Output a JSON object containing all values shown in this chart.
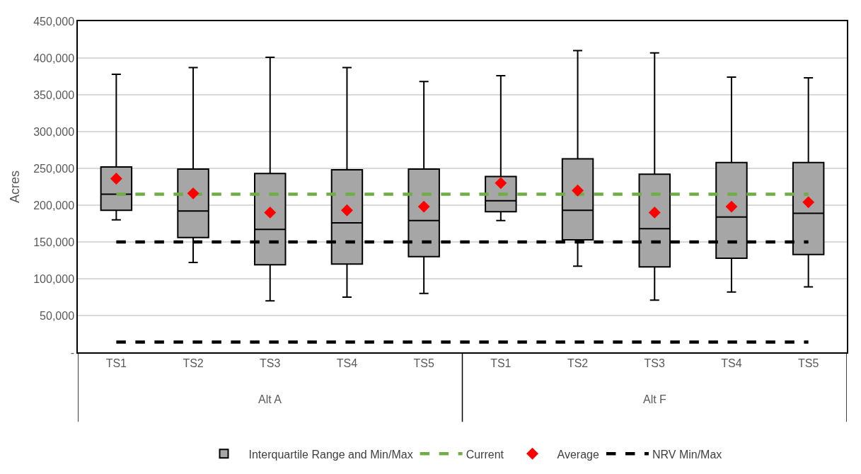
{
  "chart_data": {
    "type": "box",
    "ylabel": "Acres",
    "categories": [
      "TS1",
      "TS2",
      "TS3",
      "TS4",
      "TS5",
      "TS1",
      "TS2",
      "TS3",
      "TS4",
      "TS5"
    ],
    "annotations": [
      "Alt A",
      "Alt F"
    ],
    "ylim": [
      0,
      450000
    ],
    "yticks": [
      {
        "value": 0,
        "label": "-"
      },
      {
        "value": 50000,
        "label": "50,000"
      },
      {
        "value": 100000,
        "label": "100,000"
      },
      {
        "value": 150000,
        "label": "150,000"
      },
      {
        "value": 200000,
        "label": "200,000"
      },
      {
        "value": 250000,
        "label": "250,000"
      },
      {
        "value": 300000,
        "label": "300,000"
      },
      {
        "value": 350000,
        "label": "350,000"
      },
      {
        "value": 400000,
        "label": "400,000"
      },
      {
        "value": 450000,
        "label": "450,000"
      }
    ],
    "grid": "y",
    "legend": "bottom",
    "series": [
      {
        "name": "Interquartile Range and Min/Max",
        "color": "#a6a6a6",
        "boxes": [
          {
            "low": 180000,
            "q1": 193000,
            "median": 215000,
            "q3": 252000,
            "high": 378000
          },
          {
            "low": 122000,
            "q1": 156000,
            "median": 192000,
            "q3": 249000,
            "high": 387000
          },
          {
            "low": 70000,
            "q1": 119000,
            "median": 167000,
            "q3": 243000,
            "high": 401000
          },
          {
            "low": 75000,
            "q1": 120000,
            "median": 176000,
            "q3": 248000,
            "high": 387000
          },
          {
            "low": 80000,
            "q1": 130000,
            "median": 179000,
            "q3": 249000,
            "high": 368000
          },
          {
            "low": 179000,
            "q1": 191000,
            "median": 206000,
            "q3": 239000,
            "high": 376000
          },
          {
            "low": 117000,
            "q1": 153000,
            "median": 193000,
            "q3": 263000,
            "high": 410000
          },
          {
            "low": 71000,
            "q1": 116000,
            "median": 168000,
            "q3": 242000,
            "high": 407000
          },
          {
            "low": 82000,
            "q1": 128000,
            "median": 184000,
            "q3": 258000,
            "high": 374000
          },
          {
            "low": 89000,
            "q1": 133000,
            "median": 189000,
            "q3": 258000,
            "high": 373000
          }
        ]
      },
      {
        "name": "Current",
        "type": "line",
        "color": "#70ad47",
        "line_style": "dashed",
        "marker": "none",
        "values": [
          215000,
          215000,
          215000,
          215000,
          215000,
          215000,
          215000,
          215000,
          215000,
          215000
        ]
      },
      {
        "name": "Average",
        "type": "scatter",
        "color": "#ff0000",
        "marker": "diamond",
        "values": [
          236000,
          216000,
          190000,
          193000,
          198000,
          230000,
          220000,
          190000,
          198000,
          204000
        ]
      },
      {
        "name": "NRV Min/Max",
        "type": "line",
        "color": "#000000",
        "line_style": "dashed",
        "marker": "none",
        "values": [
          150000,
          150000,
          150000,
          150000,
          150000,
          150000,
          150000,
          150000,
          150000,
          150000
        ]
      },
      {
        "type": "line",
        "color": "#000000",
        "line_style": "dashed",
        "marker": "none",
        "values": [
          14000,
          14000,
          14000,
          14000,
          14000,
          14000,
          14000,
          14000,
          14000,
          14000
        ]
      }
    ]
  }
}
